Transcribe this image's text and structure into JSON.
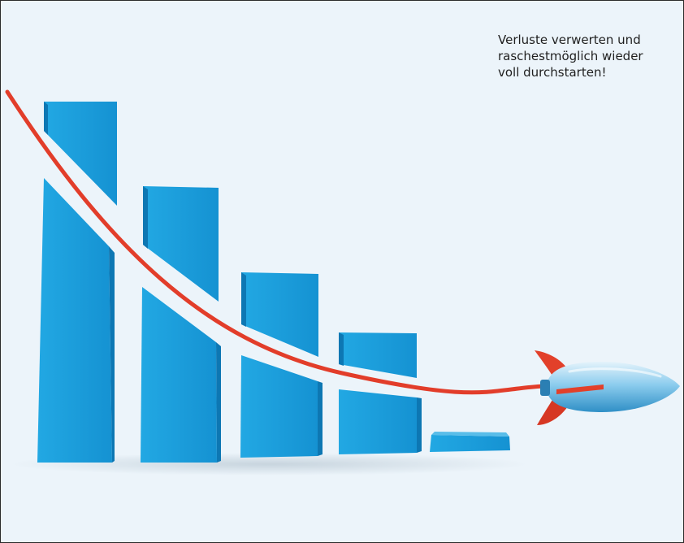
{
  "caption": {
    "line1": "Verluste verwerten und",
    "line2": "raschestmöglich wieder",
    "line3": "voll durchstarten!"
  },
  "illustration": {
    "subject": "falling-bar-chart-with-rocket",
    "bar_count": 5,
    "colors": {
      "background": "#ecf4fa",
      "bar_front": "#1b9fdc",
      "bar_side": "#0d77b3",
      "line": "#e23d2a",
      "rocket_body": "#7fc6ea",
      "rocket_fins": "#e2402a"
    }
  }
}
